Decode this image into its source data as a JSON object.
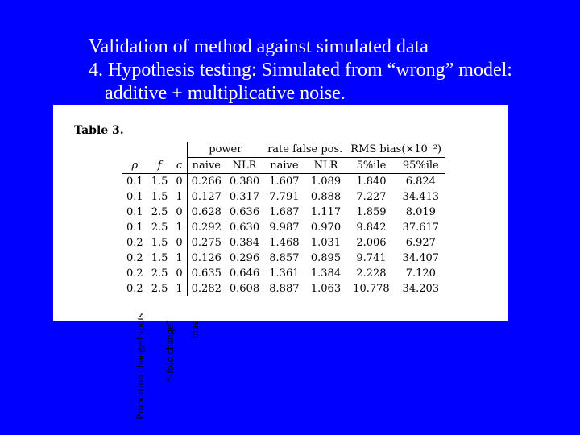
{
  "title": {
    "line1": "Validation of method against simulated data",
    "line2": "4. Hypothesis testing: Simulated from “wrong” model:",
    "line3": "additive + multiplicative noise."
  },
  "table": {
    "label": "Table 3.",
    "groups": {
      "power": "power",
      "rate_false": "rate false pos.",
      "rms": "RMS bias(×10⁻²)"
    },
    "columns": [
      "ρ",
      "f",
      "c",
      "naive",
      "NLR",
      "naive",
      "NLR",
      "5%ile",
      "95%ile"
    ],
    "rows": [
      [
        "0.1",
        "1.5",
        "0",
        "0.266",
        "0.380",
        "1.607",
        "1.089",
        "1.840",
        "6.824"
      ],
      [
        "0.1",
        "1.5",
        "1",
        "0.127",
        "0.317",
        "7.791",
        "0.888",
        "7.227",
        "34.413"
      ],
      [
        "0.1",
        "2.5",
        "0",
        "0.628",
        "0.636",
        "1.687",
        "1.117",
        "1.859",
        "8.019"
      ],
      [
        "0.1",
        "2.5",
        "1",
        "0.292",
        "0.630",
        "9.987",
        "0.970",
        "9.842",
        "37.617"
      ],
      [
        "0.2",
        "1.5",
        "0",
        "0.275",
        "0.384",
        "1.468",
        "1.031",
        "2.006",
        "6.927"
      ],
      [
        "0.2",
        "1.5",
        "1",
        "0.126",
        "0.296",
        "8.857",
        "0.895",
        "9.741",
        "34.407"
      ],
      [
        "0.2",
        "2.5",
        "0",
        "0.635",
        "0.646",
        "1.361",
        "1.384",
        "2.228",
        "7.120"
      ],
      [
        "0.2",
        "2.5",
        "1",
        "0.282",
        "0.608",
        "8.887",
        "1.063",
        "10.778",
        "34.203"
      ]
    ]
  },
  "annotations": {
    "proportion": "Proportion changed spots",
    "fold_change": "“-fold change”",
    "bias": "bias"
  }
}
